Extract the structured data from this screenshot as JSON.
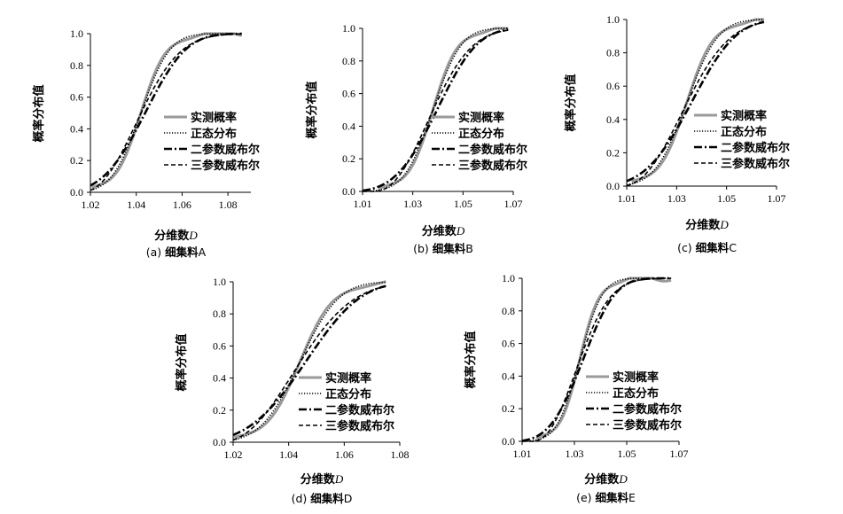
{
  "chart_data": [
    {
      "id": "a",
      "type": "line",
      "caption_prefix": "(a) ",
      "caption_bold": "细集料",
      "caption_letter": "A",
      "xlabel": "分维数",
      "xlabel_var": "D",
      "ylabel": "概率分布值",
      "xlim": [
        1.02,
        1.09
      ],
      "ylim": [
        0,
        1
      ],
      "xticks": [
        "1.02",
        "1.04",
        "1.06",
        "1.08"
      ],
      "yticks": [
        "0.0",
        "0.2",
        "0.4",
        "0.6",
        "0.8",
        "1.0"
      ],
      "mean": 1.042,
      "sd": 0.0095,
      "xmax": 1.086,
      "legend": [
        "实测概率",
        "正态分布",
        "二参数威布尔",
        "三参数威布尔"
      ]
    },
    {
      "id": "b",
      "type": "line",
      "caption_prefix": "(b) ",
      "caption_bold": "细集料",
      "caption_letter": "B",
      "xlabel": "分维数",
      "xlabel_var": "D",
      "ylabel": "概率分布值",
      "xlim": [
        1.01,
        1.07
      ],
      "ylim": [
        0,
        1
      ],
      "xticks": [
        "1.01",
        "1.03",
        "1.05",
        "1.07"
      ],
      "yticks": [
        "0.0",
        "0.2",
        "0.4",
        "0.6",
        "0.8",
        "1.0"
      ],
      "mean": 1.038,
      "sd": 0.0085,
      "xmax": 1.068,
      "legend": [
        "实测概率",
        "正态分布",
        "二参数威布尔",
        "三参数威布尔"
      ]
    },
    {
      "id": "c",
      "type": "line",
      "caption_prefix": "(c) ",
      "caption_bold": "细集料",
      "caption_letter": "C",
      "xlabel": "分维数",
      "xlabel_var": "D",
      "ylabel": "概率分布值",
      "xlim": [
        1.01,
        1.07
      ],
      "ylim": [
        0,
        1
      ],
      "xticks": [
        "1.01",
        "1.03",
        "1.05",
        "1.07"
      ],
      "yticks": [
        "0.0",
        "0.2",
        "0.4",
        "0.6",
        "0.8",
        "1.0"
      ],
      "mean": 1.034,
      "sd": 0.0095,
      "xmax": 1.065,
      "legend": [
        "实测概率",
        "正态分布",
        "二参数威布尔",
        "三参数威布尔"
      ]
    },
    {
      "id": "d",
      "type": "line",
      "caption_prefix": "(d) ",
      "caption_bold": "细集料",
      "caption_letter": "D",
      "xlabel": "分维数",
      "xlabel_var": "D",
      "ylabel": "概率分布值",
      "xlim": [
        1.02,
        1.08
      ],
      "ylim": [
        0,
        1
      ],
      "xticks": [
        "1.02",
        "1.04",
        "1.06",
        "1.08"
      ],
      "yticks": [
        "0.0",
        "0.2",
        "0.4",
        "0.6",
        "0.8",
        "1.0"
      ],
      "mean": 1.044,
      "sd": 0.0105,
      "xmax": 1.075,
      "legend": [
        "实测概率",
        "正态分布",
        "二参数威布尔",
        "三参数威布尔"
      ]
    },
    {
      "id": "e",
      "type": "line",
      "caption_prefix": "(e) ",
      "caption_bold": "细集料",
      "caption_letter": "E",
      "xlabel": "分维数",
      "xlabel_var": "D",
      "ylabel": "概率分布值",
      "xlim": [
        1.01,
        1.07
      ],
      "ylim": [
        0,
        1
      ],
      "xticks": [
        "1.01",
        "1.03",
        "1.05",
        "1.07"
      ],
      "yticks": [
        "0.0",
        "0.2",
        "0.4",
        "0.6",
        "0.8",
        "1.0"
      ],
      "mean": 1.032,
      "sd": 0.0065,
      "xmax": 1.067,
      "legend": [
        "实测概率",
        "正态分布",
        "二参数威布尔",
        "三参数威布尔"
      ]
    }
  ],
  "series_style": [
    {
      "color": "#9a9a9a",
      "dash": "",
      "width": 3.0
    },
    {
      "color": "#000000",
      "dash": "1.2 1.8",
      "width": 1.6
    },
    {
      "color": "#000000",
      "dash": "9 3 2 3",
      "width": 2.6
    },
    {
      "color": "#000000",
      "dash": "5 3",
      "width": 1.6
    }
  ]
}
